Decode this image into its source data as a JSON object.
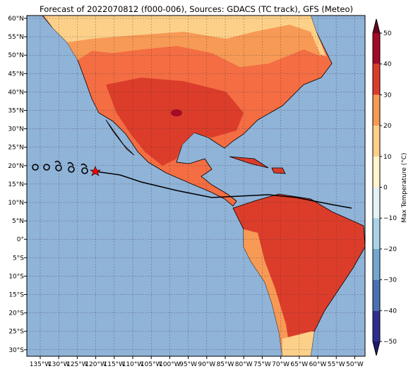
{
  "title": "Forecast of 2022070812 (f000-006), Sources: GDACS (TC track), GFS (Meteo)",
  "lat_labels": [
    "60°N",
    "55°N",
    "50°N",
    "45°N",
    "40°N",
    "35°N",
    "30°N",
    "25°N",
    "20°N",
    "15°N",
    "10°N",
    "5°N",
    "0°",
    "5°S",
    "10°S",
    "15°S",
    "20°S",
    "25°S",
    "30°S"
  ],
  "lon_labels": [
    "135°W",
    "130°W",
    "125°W",
    "120°W",
    "115°W",
    "110°W",
    "105°W",
    "100°W",
    "95°W",
    "90°W",
    "85°W",
    "80°W",
    "75°W",
    "70°W",
    "65°W",
    "60°W",
    "55°W",
    "50°W"
  ],
  "colorbar": {
    "label": "Max Temperature (°C)",
    "ticks": [
      {
        "value": -50,
        "label": "−50"
      },
      {
        "value": -40,
        "label": "−40"
      },
      {
        "value": -30,
        "label": "−30"
      },
      {
        "value": -20,
        "label": "−20"
      },
      {
        "value": -10,
        "label": "−10"
      },
      0,
      10,
      20,
      30,
      40,
      50
    ],
    "colors": [
      "#2c2f8f",
      "#4a72b2",
      "#74a7cf",
      "#a9d3e7",
      "#e3f2f7",
      "#fff5c8",
      "#fdd08a",
      "#f79a55",
      "#dc3d2a",
      "#a50a26"
    ],
    "under": "#1f1a6b",
    "over": "#6b0020"
  }
}
